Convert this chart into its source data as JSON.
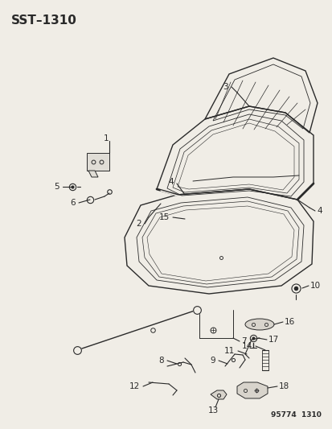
{
  "title": "SST–1310",
  "footer": "95774  1310",
  "bg_color": "#f0ede6",
  "line_color": "#2a2a2a",
  "title_fontsize": 11,
  "footer_fontsize": 6.5,
  "label_fontsize": 7.5
}
